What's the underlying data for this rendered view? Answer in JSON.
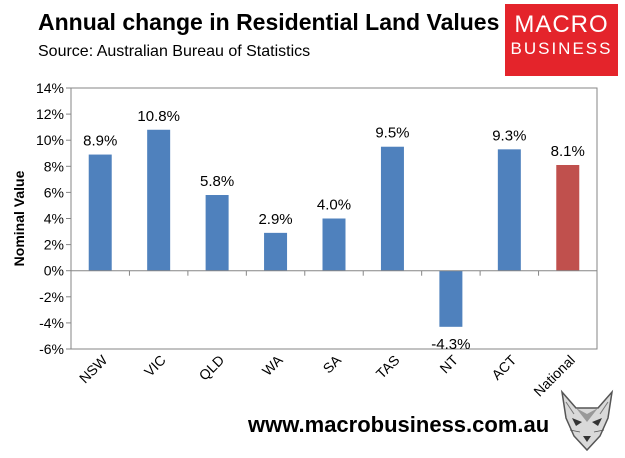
{
  "chart_data": {
    "type": "bar",
    "title": "Annual change in Residential Land Values",
    "subtitle": "Source: Australian Bureau of Statistics",
    "xlabel": "",
    "ylabel": "Nominal Value",
    "categories": [
      "NSW",
      "VIC",
      "QLD",
      "WA",
      "SA",
      "TAS",
      "NT",
      "ACT",
      "National"
    ],
    "values": [
      8.9,
      10.8,
      5.8,
      2.9,
      4.0,
      9.5,
      -4.3,
      9.3,
      8.1
    ],
    "data_labels": [
      "8.9%",
      "10.8%",
      "5.8%",
      "2.9%",
      "4.0%",
      "9.5%",
      "-4.3%",
      "9.3%",
      "8.1%"
    ],
    "ylim": [
      -6,
      14
    ],
    "yticks": [
      14,
      12,
      10,
      8,
      6,
      4,
      2,
      0,
      -2,
      -4,
      -6
    ],
    "ytick_labels": [
      "14%",
      "12%",
      "10%",
      "8%",
      "6%",
      "4%",
      "2%",
      "0%",
      "-2%",
      "-4%",
      "-6%"
    ],
    "grid": false,
    "legend": "none",
    "colors": {
      "default": "#4f81bd",
      "highlight": "#c0504d",
      "highlight_category": "National",
      "axis": "#868686"
    }
  },
  "branding": {
    "logo_line1": "MACRO",
    "logo_line2": "BUSINESS",
    "logo_color": "#e4242b",
    "website": "www.macrobusiness.com.au",
    "mascot_icon": "wolf-head-icon"
  }
}
